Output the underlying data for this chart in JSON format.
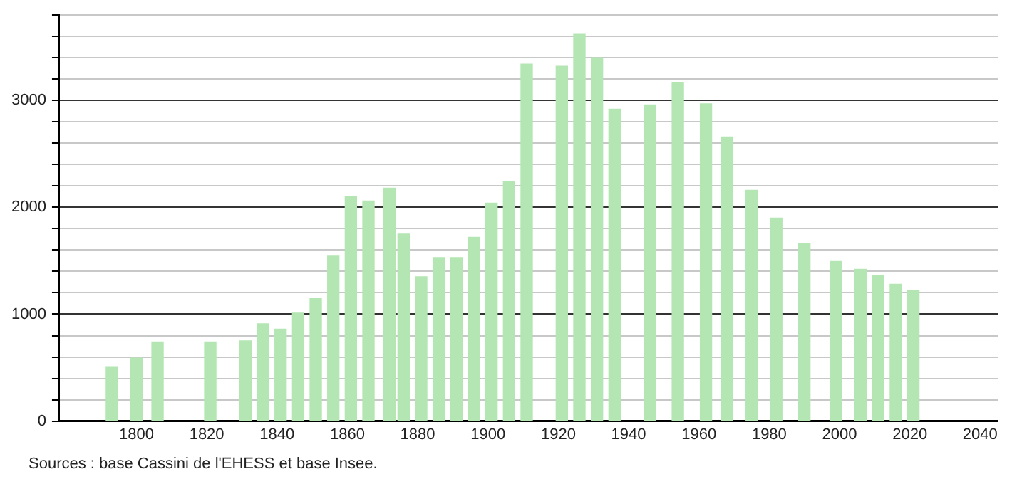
{
  "chart_data": {
    "type": "bar",
    "color": "#b3e6b3",
    "x": [
      1793,
      1800,
      1806,
      1821,
      1831,
      1836,
      1841,
      1846,
      1851,
      1856,
      1861,
      1866,
      1872,
      1876,
      1881,
      1886,
      1891,
      1896,
      1901,
      1906,
      1911,
      1921,
      1926,
      1931,
      1936,
      1946,
      1954,
      1962,
      1968,
      1975,
      1982,
      1990,
      1999,
      2006,
      2011,
      2016,
      2021
    ],
    "values": [
      510,
      590,
      740,
      740,
      750,
      910,
      860,
      1010,
      1150,
      1550,
      2100,
      2060,
      2180,
      1750,
      1350,
      1530,
      1530,
      1720,
      2040,
      2240,
      3340,
      3320,
      3620,
      3400,
      2920,
      2960,
      3170,
      2970,
      2660,
      2160,
      1900,
      1660,
      1500,
      1420,
      1360,
      1280,
      1220
    ],
    "xlim": [
      1778,
      2045
    ],
    "xticks": [
      1800,
      1820,
      1840,
      1860,
      1880,
      1900,
      1920,
      1940,
      1960,
      1980,
      2000,
      2020,
      2040
    ],
    "ylim": [
      0,
      3800
    ],
    "yticks": [
      0,
      {
        "value": 200,
        "label": null
      },
      {
        "value": 400,
        "label": null
      },
      {
        "value": 600,
        "label": null
      },
      {
        "value": 800,
        "label": null
      },
      1000,
      {
        "value": 1200,
        "label": null
      },
      {
        "value": 1400,
        "label": null
      },
      {
        "value": 1600,
        "label": null
      },
      {
        "value": 1800,
        "label": null
      },
      2000,
      {
        "value": 2200,
        "label": null
      },
      {
        "value": 2400,
        "label": null
      },
      {
        "value": 2600,
        "label": null
      },
      {
        "value": 2800,
        "label": null
      },
      3000,
      {
        "value": 3200,
        "label": null
      },
      {
        "value": 3400,
        "label": null
      },
      {
        "value": 3600,
        "label": null
      },
      {
        "value": 3800,
        "label": null
      }
    ],
    "grid": "y",
    "legend": false,
    "annotations": [
      "Sources : base Cassini de l'EHESS et base Insee."
    ]
  }
}
